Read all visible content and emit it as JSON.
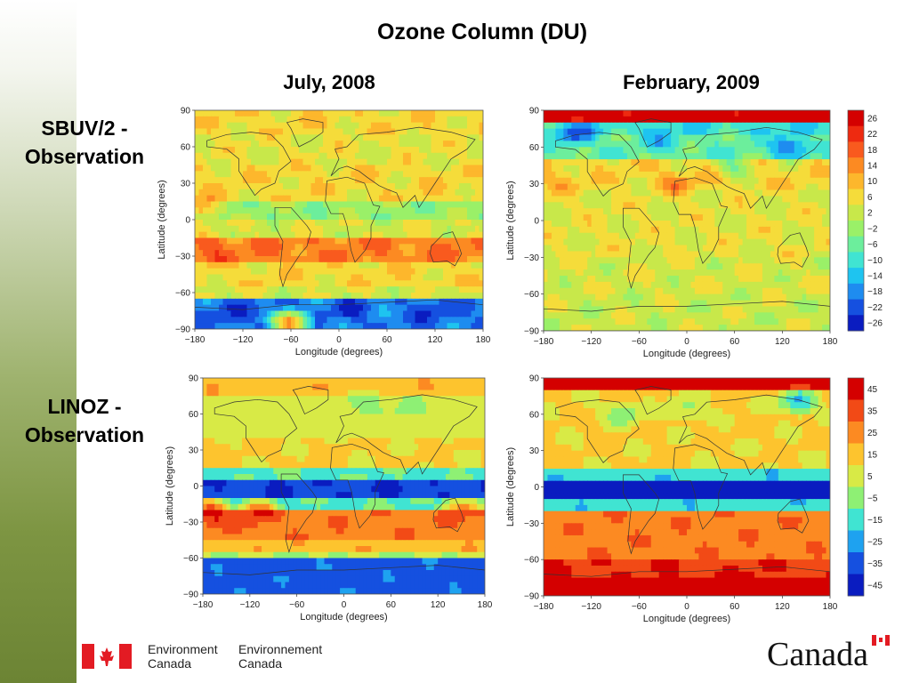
{
  "title": "Ozone Column (DU)",
  "columns": [
    "July, 2008",
    "February, 2009"
  ],
  "rows": [
    "SBUV/2 -\nObservation",
    "LINOZ -\nObservation"
  ],
  "axes": {
    "xlabel": "Longitude (degrees)",
    "ylabel": "Latitude (degrees)",
    "xticks": [
      "−180",
      "−120",
      "−60",
      "0",
      "60",
      "120",
      "180"
    ],
    "yticks": [
      "90",
      "60",
      "30",
      "0",
      "−30",
      "−60",
      "−90"
    ]
  },
  "chart_data": [
    {
      "type": "heatmap",
      "title": "July, 2008",
      "panel": "SBUV/2 - Observation",
      "xlabel": "Longitude (degrees)",
      "ylabel": "Latitude (degrees)",
      "xlim": [
        -180,
        180
      ],
      "ylim": [
        -90,
        90
      ],
      "lat_bands": [
        [
          90,
          70,
          6
        ],
        [
          70,
          45,
          4
        ],
        [
          45,
          15,
          6
        ],
        [
          15,
          0,
          -2
        ],
        [
          0,
          -15,
          3
        ],
        [
          -15,
          -35,
          14
        ],
        [
          -35,
          -55,
          6
        ],
        [
          -55,
          -65,
          3
        ],
        [
          -65,
          -90,
          -18
        ]
      ],
      "hot_spots": [
        [
          -160,
          -25,
          18
        ],
        [
          -170,
          10,
          14
        ],
        [
          150,
          -25,
          14
        ],
        [
          -60,
          -85,
          18
        ],
        [
          -140,
          -75,
          -22
        ],
        [
          10,
          -75,
          -22
        ],
        [
          120,
          -75,
          -22
        ]
      ],
      "colorbar": "SBUV"
    },
    {
      "type": "heatmap",
      "title": "February, 2009",
      "panel": "SBUV/2 - Observation",
      "xlabel": "Longitude (degrees)",
      "ylabel": "Latitude (degrees)",
      "xlim": [
        -180,
        180
      ],
      "ylim": [
        -90,
        90
      ],
      "lat_bands": [
        [
          90,
          82,
          26
        ],
        [
          82,
          70,
          -10
        ],
        [
          70,
          50,
          -6
        ],
        [
          50,
          25,
          6
        ],
        [
          25,
          -30,
          4
        ],
        [
          -30,
          -60,
          3
        ],
        [
          -60,
          -90,
          2
        ]
      ],
      "hot_spots": [
        [
          -140,
          70,
          -22
        ],
        [
          130,
          60,
          -22
        ],
        [
          -30,
          65,
          -14
        ],
        [
          -160,
          30,
          10
        ],
        [
          -10,
          30,
          14
        ],
        [
          60,
          45,
          -6
        ]
      ],
      "colorbar": "SBUV"
    },
    {
      "type": "heatmap",
      "title": "July, 2008",
      "panel": "LINOZ - Observation",
      "xlabel": "Longitude (degrees)",
      "ylabel": "Latitude (degrees)",
      "xlim": [
        -180,
        180
      ],
      "ylim": [
        -90,
        90
      ],
      "lat_bands": [
        [
          90,
          75,
          15
        ],
        [
          75,
          40,
          5
        ],
        [
          40,
          15,
          10
        ],
        [
          15,
          5,
          -10
        ],
        [
          5,
          -8,
          -35
        ],
        [
          -8,
          -20,
          -10
        ],
        [
          -20,
          -45,
          25
        ],
        [
          -45,
          -55,
          15
        ],
        [
          -55,
          -62,
          0
        ],
        [
          -62,
          -90,
          -30
        ]
      ],
      "hot_spots": [
        [
          -170,
          -22,
          45
        ],
        [
          -110,
          -22,
          40
        ],
        [
          150,
          -20,
          30
        ],
        [
          30,
          70,
          -10
        ],
        [
          80,
          65,
          -5
        ]
      ],
      "colorbar": "LINOZ"
    },
    {
      "type": "heatmap",
      "title": "February, 2009",
      "panel": "LINOZ - Observation",
      "xlabel": "Longitude (degrees)",
      "ylabel": "Latitude (degrees)",
      "xlim": [
        -180,
        180
      ],
      "ylim": [
        -90,
        90
      ],
      "lat_bands": [
        [
          90,
          82,
          40
        ],
        [
          82,
          45,
          10
        ],
        [
          45,
          15,
          10
        ],
        [
          15,
          5,
          -15
        ],
        [
          5,
          -12,
          -40
        ],
        [
          -12,
          -22,
          -15
        ],
        [
          -22,
          -60,
          25
        ],
        [
          -60,
          -75,
          35
        ],
        [
          -75,
          -90,
          40
        ]
      ],
      "hot_spots": [
        [
          140,
          70,
          -25
        ],
        [
          -80,
          60,
          -10
        ],
        [
          0,
          65,
          -5
        ],
        [
          60,
          -80,
          45
        ],
        [
          -120,
          -85,
          45
        ]
      ],
      "colorbar": "LINOZ"
    }
  ],
  "colorbars": {
    "SBUV": {
      "ticks": [
        "26",
        "22",
        "18",
        "14",
        "10",
        "6",
        "2",
        "−2",
        "−6",
        "−10",
        "−14",
        "−18",
        "−22",
        "−26"
      ],
      "colors": [
        "#d40000",
        "#ee2a10",
        "#f95a1e",
        "#fc8a22",
        "#fdb72c",
        "#f5dc3a",
        "#c8e84a",
        "#9af068",
        "#6cee9c",
        "#40e4d2",
        "#1ec4f0",
        "#1e8cf0",
        "#1550e0",
        "#0a1cc0"
      ]
    },
    "LINOZ": {
      "ticks": [
        "45",
        "35",
        "25",
        "15",
        "5",
        "−5",
        "−15",
        "−25",
        "−35",
        "−45"
      ],
      "colors": [
        "#d40000",
        "#f24a16",
        "#fc8a22",
        "#fdc42e",
        "#d8ea46",
        "#8ef074",
        "#40e4d2",
        "#1ea2f0",
        "#1550e0",
        "#0a1cc0"
      ]
    }
  },
  "footer": {
    "dept_en_1": "Environment",
    "dept_en_2": "Canada",
    "dept_fr_1": "Environnement",
    "dept_fr_2": "Canada",
    "wordmark": "Canada"
  }
}
